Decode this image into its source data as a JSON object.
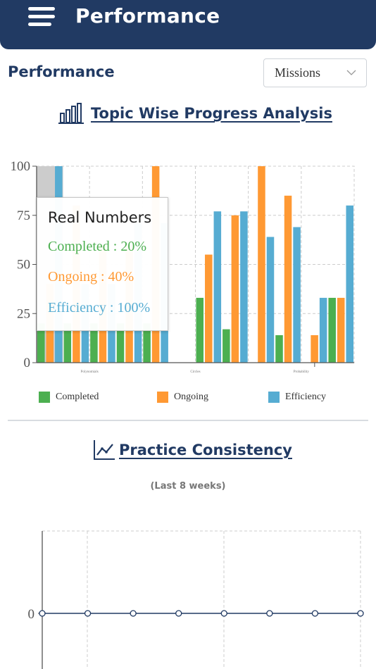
{
  "header": {
    "title": "Performance"
  },
  "section": {
    "title": "Performance"
  },
  "select": {
    "value": "Missions"
  },
  "topic_chart": {
    "heading": "Topic Wise Progress Analysis"
  },
  "tooltip": {
    "title": "Real Numbers",
    "completed": "Completed : 20%",
    "ongoing": "Ongoing : 40%",
    "efficiency": "Efficiency : 100%"
  },
  "practice": {
    "heading": "Practice Consistency",
    "subtitle": "(Last 8 weeks)"
  },
  "colors": {
    "completed": "#4caf50",
    "ongoing": "#ff9933",
    "efficiency": "#56acd2",
    "navy": "#213a63",
    "highlight": "#cccccc"
  },
  "chart_data": [
    {
      "type": "bar",
      "title": "Topic Wise Progress Analysis",
      "ylim": [
        0,
        100
      ],
      "yticks": [
        0,
        25,
        50,
        75,
        100
      ],
      "x_tick_labels": [
        "Polynomials",
        "Circles",
        "Probability"
      ],
      "legend": [
        "Completed",
        "Ongoing",
        "Efficiency"
      ],
      "legend_position": "bottom",
      "grid": true,
      "groups": [
        {
          "completed": 20,
          "ongoing": 40,
          "efficiency": 100,
          "highlighted": true
        },
        {
          "completed": 20,
          "ongoing": 80,
          "efficiency": 40
        },
        {
          "completed": 20,
          "ongoing": 60,
          "efficiency": 40
        },
        {
          "completed": 20,
          "ongoing": 60,
          "efficiency": 71
        },
        {
          "completed": 20,
          "ongoing": 100,
          "efficiency": 71
        },
        {
          "completed": 0,
          "ongoing": 0,
          "efficiency": 0
        },
        {
          "completed": 33,
          "ongoing": 55,
          "efficiency": 77
        },
        {
          "completed": 17,
          "ongoing": 75,
          "efficiency": 77
        },
        {
          "completed": 0,
          "ongoing": 100,
          "efficiency": 64
        },
        {
          "completed": 14,
          "ongoing": 85,
          "efficiency": 69
        },
        {
          "completed": 0,
          "ongoing": 14,
          "efficiency": 33
        },
        {
          "completed": 33,
          "ongoing": 33,
          "efficiency": 80
        }
      ]
    },
    {
      "type": "line",
      "title": "Practice Consistency",
      "subtitle": "(Last 8 weeks)",
      "yticks": [
        0
      ],
      "values": [
        0,
        0,
        0,
        0,
        0,
        0,
        0,
        0
      ]
    }
  ]
}
